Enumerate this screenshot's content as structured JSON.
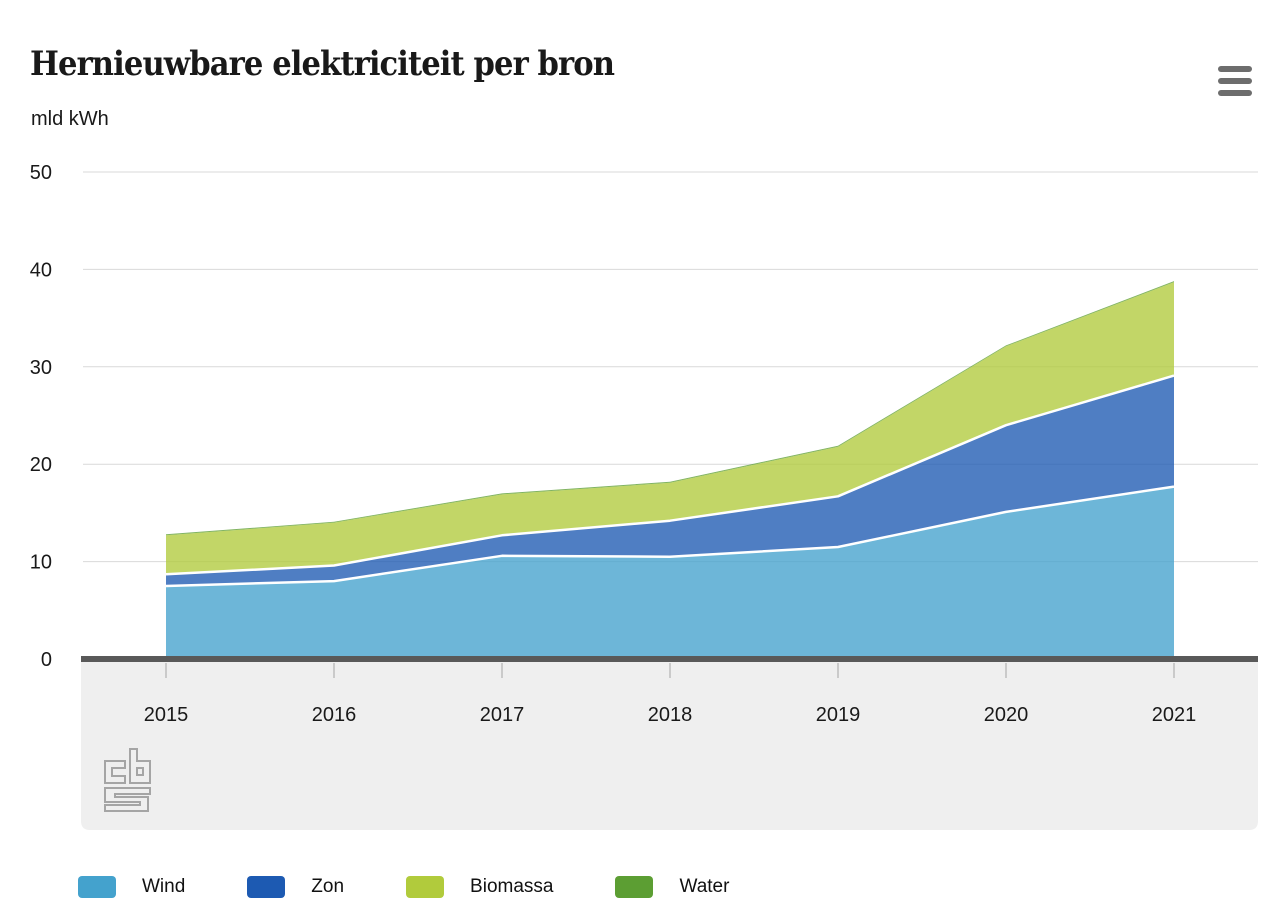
{
  "header": {
    "title": "Hernieuwbare elektriciteit per bron",
    "unit_label": "mld kWh",
    "menu_icon": "hamburger-icon"
  },
  "chart_data": {
    "type": "area",
    "stacked": true,
    "title": "Hernieuwbare elektriciteit per bron",
    "ylabel": "mld kWh",
    "xlabel": "",
    "x": [
      2015,
      2016,
      2017,
      2018,
      2019,
      2020,
      2021
    ],
    "series": [
      {
        "name": "Wind",
        "color": "#44a2cd",
        "values": [
          7.5,
          8.0,
          10.6,
          10.5,
          11.5,
          15.1,
          17.7
        ]
      },
      {
        "name": "Zon",
        "color": "#1d5ab2",
        "values": [
          1.2,
          1.6,
          2.1,
          3.7,
          5.2,
          8.9,
          11.4
        ]
      },
      {
        "name": "Biomassa",
        "color": "#b1cb3c",
        "values": [
          4.0,
          4.4,
          4.2,
          3.9,
          5.1,
          8.1,
          9.6
        ]
      },
      {
        "name": "Water",
        "color": "#5c9e33",
        "values": [
          0.1,
          0.1,
          0.1,
          0.1,
          0.1,
          0.1,
          0.1
        ]
      }
    ],
    "totals": [
      12.8,
      14.1,
      17.0,
      18.2,
      21.9,
      32.2,
      38.8
    ],
    "ylim": [
      0,
      50
    ],
    "yticks": [
      0,
      10,
      20,
      30,
      40,
      50
    ],
    "grid": true,
    "legend_position": "bottom"
  },
  "style": {
    "band_color": "#efefef",
    "baseline_color": "#595959",
    "grid_color": "#d9d9d9",
    "tick_color": "#bdbdbd",
    "text_color": "#191919",
    "separator_color": "#ffffff",
    "logo_color": "#a5a5a5",
    "menu_icon_color": "#6d6d6d",
    "fill_opacity": 0.78
  },
  "footer": {
    "logo": "cbs-logo"
  }
}
